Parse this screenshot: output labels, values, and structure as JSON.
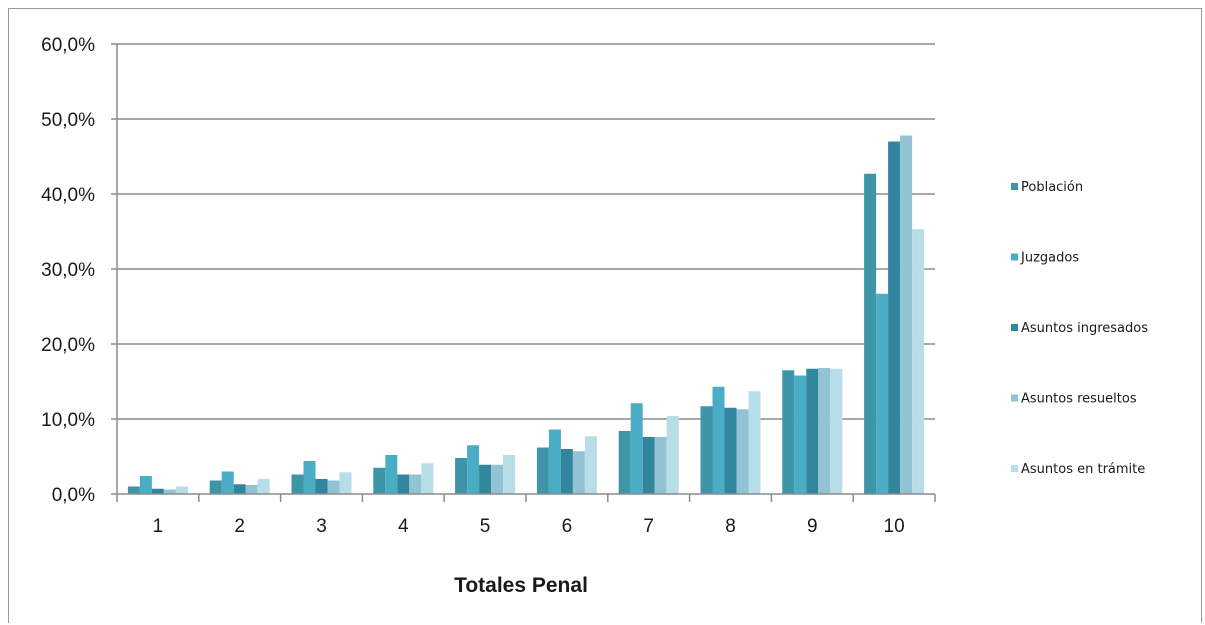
{
  "chart_data": {
    "type": "bar",
    "categories": [
      "1",
      "2",
      "3",
      "4",
      "5",
      "6",
      "7",
      "8",
      "9",
      "10"
    ],
    "series": [
      {
        "name": "Población",
        "color": "#3e95a8",
        "values": [
          1.0,
          1.8,
          2.6,
          3.5,
          4.8,
          6.2,
          8.4,
          11.7,
          16.5,
          42.7
        ]
      },
      {
        "name": "Juzgados",
        "color": "#4bacc6",
        "values": [
          2.4,
          3.0,
          4.4,
          5.2,
          6.5,
          8.6,
          12.1,
          14.3,
          15.8,
          26.7
        ]
      },
      {
        "name": "Asuntos ingresados",
        "color": "#31859c",
        "values": [
          0.7,
          1.3,
          2.0,
          2.6,
          3.9,
          6.0,
          7.6,
          11.5,
          16.7,
          47.0
        ]
      },
      {
        "name": "Asuntos resueltos",
        "color": "#92c3d5",
        "values": [
          0.6,
          1.2,
          1.8,
          2.6,
          3.9,
          5.7,
          7.6,
          11.3,
          16.8,
          47.8
        ]
      },
      {
        "name": "Asuntos en trámite",
        "color": "#b7dde8",
        "values": [
          1.0,
          2.0,
          2.9,
          4.1,
          5.2,
          7.7,
          10.4,
          13.7,
          16.7,
          35.3
        ]
      }
    ],
    "xlabel": "Totales Penal",
    "ylabel": "",
    "ylim": [
      0,
      60
    ],
    "yticks": [
      "0,0%",
      "10,0%",
      "20,0%",
      "30,0%",
      "40,0%",
      "50,0%",
      "60,0%"
    ],
    "grid": true,
    "legend_position": "right"
  }
}
